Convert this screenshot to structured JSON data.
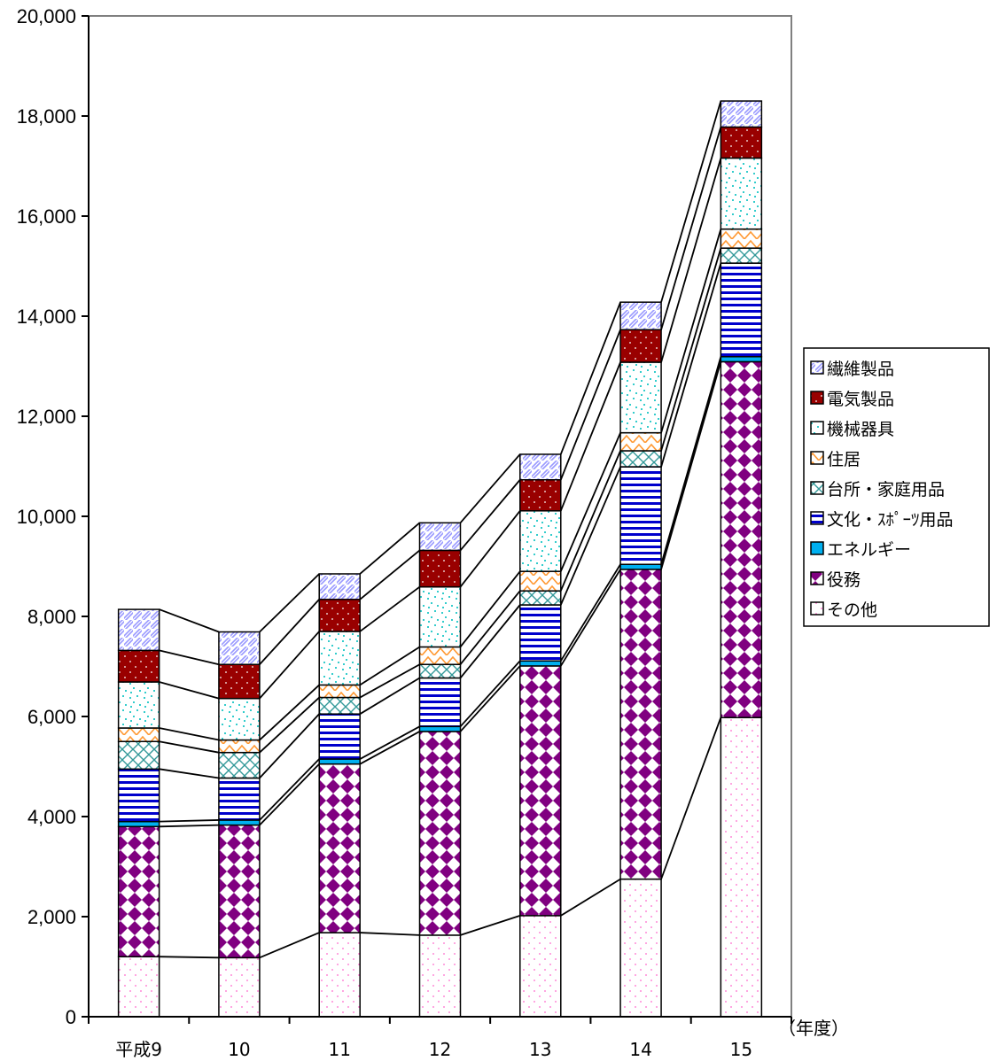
{
  "chart_data": {
    "type": "bar",
    "stacked": true,
    "series_connector_lines": true,
    "categories": [
      "平成9",
      "10",
      "11",
      "12",
      "13",
      "14",
      "15"
    ],
    "xlabel": "（年度）",
    "ylim": [
      0,
      20000
    ],
    "yticks": [
      0,
      2000,
      4000,
      6000,
      8000,
      10000,
      12000,
      14000,
      16000,
      18000,
      20000
    ],
    "ytick_labels": [
      "0",
      "2,000",
      "4,000",
      "6,000",
      "8,000",
      "10,000",
      "12,000",
      "14,000",
      "16,000",
      "18,000",
      "20,000"
    ],
    "grid": false,
    "legend_position": "right",
    "series": [
      {
        "name": "その他",
        "pattern": "dots",
        "color": "#ff66cc",
        "values": [
          1200,
          1180,
          1680,
          1630,
          2020,
          2750,
          5980
        ]
      },
      {
        "name": "役務",
        "pattern": "diamonds",
        "color": "#800080",
        "values": [
          2600,
          2650,
          3370,
          4070,
          4990,
          6190,
          7110
        ]
      },
      {
        "name": "エネルギー",
        "pattern": "solid",
        "color": "#00b0f0",
        "values": [
          100,
          100,
          100,
          100,
          100,
          100,
          100
        ]
      },
      {
        "name": "文化・ｽﾎﾟｰﾂ用品",
        "pattern": "hlines",
        "color": "#0000cc",
        "values": [
          1050,
          840,
          900,
          970,
          1120,
          1950,
          1870
        ]
      },
      {
        "name": "台所・家庭用品",
        "pattern": "crosshatch",
        "color": "#339999",
        "values": [
          550,
          510,
          330,
          270,
          280,
          320,
          300
        ]
      },
      {
        "name": "住居",
        "pattern": "zigzag",
        "color": "#ff9933",
        "values": [
          270,
          250,
          250,
          350,
          390,
          360,
          380
        ]
      },
      {
        "name": "機械器具",
        "pattern": "confetti",
        "color": "#33cccc",
        "values": [
          920,
          830,
          1070,
          1200,
          1210,
          1410,
          1420
        ]
      },
      {
        "name": "電気製品",
        "pattern": "dark-dots",
        "color": "#990000",
        "values": [
          630,
          680,
          640,
          730,
          620,
          650,
          620
        ]
      },
      {
        "name": "繊維製品",
        "pattern": "diagonal",
        "color": "#9999ff",
        "values": [
          820,
          650,
          510,
          550,
          510,
          550,
          520
        ]
      }
    ]
  }
}
